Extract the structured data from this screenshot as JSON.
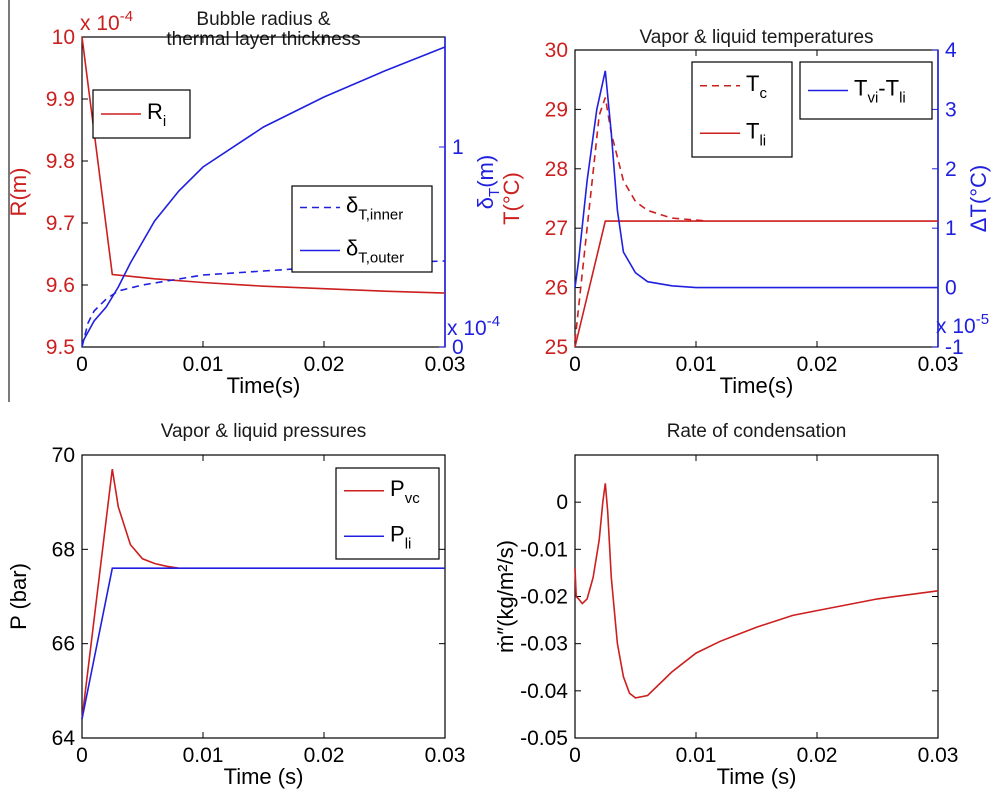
{
  "colors": {
    "red": "#cc1f1f",
    "blue": "#2020e0",
    "axis": "#000000"
  },
  "chart_data": [
    {
      "id": "p1",
      "type": "line",
      "title": [
        "Bubble radius &",
        "thermal layer thickness"
      ],
      "xlabel": "Time(s)",
      "xlim": [
        0,
        0.03
      ],
      "xticks": [
        "0",
        "0.01",
        "0.02",
        "0.03"
      ],
      "ylabel_left": {
        "main": "R",
        "unit": "(m)"
      },
      "ylim_left": [
        9.5,
        10
      ],
      "yticks_left": [
        "9.5",
        "9.6",
        "9.7",
        "9.8",
        "9.9",
        "10"
      ],
      "left_multiplier": {
        "base": "x 10",
        "exp": "-4"
      },
      "ylabel_right": {
        "main": "δ",
        "sub": "T",
        "unit": "(m)"
      },
      "ylim_right": [
        0,
        1.55
      ],
      "yticks_right": [
        "0",
        "1"
      ],
      "right_multiplier": {
        "base": "x 10",
        "exp": "-4"
      },
      "legends": [
        {
          "position": "top-left",
          "entries": [
            {
              "main": "R",
              "sub": "i",
              "style": "solid",
              "color": "red"
            }
          ]
        },
        {
          "position": "middle-right",
          "entries": [
            {
              "main": "δ",
              "sub": "T,inner",
              "style": "dashed",
              "color": "blue"
            },
            {
              "main": "δ",
              "sub": "T,outer",
              "style": "solid",
              "color": "blue"
            }
          ]
        }
      ],
      "series": [
        {
          "name": "R_i",
          "axis": "left",
          "color": "red",
          "style": "solid",
          "x": [
            0,
            0.0025,
            0.004,
            0.006,
            0.01,
            0.015,
            0.02,
            0.025,
            0.03
          ],
          "y": [
            10.0,
            9.617,
            9.614,
            9.61,
            9.604,
            9.598,
            9.594,
            9.59,
            9.587
          ]
        },
        {
          "name": "δ_T,inner",
          "axis": "right",
          "color": "blue",
          "style": "dashed",
          "x": [
            0,
            0.0005,
            0.001,
            0.002,
            0.003,
            0.005,
            0.008,
            0.01,
            0.015,
            0.02,
            0.025,
            0.03
          ],
          "y": [
            0.0,
            0.12,
            0.18,
            0.24,
            0.28,
            0.31,
            0.34,
            0.36,
            0.38,
            0.4,
            0.42,
            0.43
          ]
        },
        {
          "name": "δ_T,outer",
          "axis": "right",
          "color": "blue",
          "style": "solid",
          "x": [
            0,
            0.001,
            0.002,
            0.003,
            0.004,
            0.006,
            0.008,
            0.01,
            0.015,
            0.02,
            0.025,
            0.03
          ],
          "y": [
            0.02,
            0.13,
            0.2,
            0.3,
            0.42,
            0.63,
            0.78,
            0.9,
            1.1,
            1.25,
            1.38,
            1.5
          ]
        }
      ]
    },
    {
      "id": "p2",
      "type": "line",
      "title": [
        "Vapor & liquid temperatures"
      ],
      "xlabel": "Time(s)",
      "xlim": [
        0,
        0.03
      ],
      "xticks": [
        "0",
        "0.01",
        "0.02",
        "0.03"
      ],
      "ylabel_left": {
        "main": "T",
        "unit": "(°C)"
      },
      "ylim_left": [
        25,
        30
      ],
      "yticks_left": [
        "25",
        "26",
        "27",
        "28",
        "29",
        "30"
      ],
      "ylabel_right": {
        "main": "ΔT",
        "unit": "(°C)"
      },
      "ylim_right": [
        -1,
        4
      ],
      "yticks_right": [
        "-1",
        "0",
        "1",
        "2",
        "3",
        "4"
      ],
      "right_multiplier": {
        "base": "x 10",
        "exp": "-5"
      },
      "legends": [
        {
          "position": "top-middle",
          "entries": [
            {
              "main": "T",
              "sub": "c",
              "style": "dashed",
              "color": "red"
            },
            {
              "main": "T",
              "sub": "li",
              "style": "solid",
              "color": "red"
            }
          ]
        },
        {
          "position": "top-right",
          "entries": [
            {
              "main": "T",
              "sub": "vi",
              "mid": "-T",
              "sub2": "li",
              "style": "solid",
              "color": "blue"
            }
          ]
        }
      ],
      "series": [
        {
          "name": "T_c",
          "axis": "left",
          "color": "red",
          "style": "dashed",
          "x": [
            0,
            0.001,
            0.002,
            0.0025,
            0.003,
            0.004,
            0.005,
            0.006,
            0.008,
            0.011
          ],
          "y": [
            25.1,
            27.0,
            28.9,
            29.2,
            28.6,
            27.8,
            27.45,
            27.3,
            27.17,
            27.12
          ]
        },
        {
          "name": "T_li",
          "axis": "left",
          "color": "red",
          "style": "solid",
          "x": [
            0,
            0.0025,
            0.03
          ],
          "y": [
            25.0,
            27.12,
            27.12
          ]
        },
        {
          "name": "T_vi-T_li",
          "axis": "right",
          "color": "blue",
          "style": "solid",
          "x": [
            0,
            0.0003,
            0.001,
            0.0018,
            0.0025,
            0.003,
            0.0035,
            0.004,
            0.005,
            0.006,
            0.008,
            0.01,
            0.015,
            0.03
          ],
          "y": [
            0.0,
            0.45,
            1.8,
            3.0,
            3.65,
            2.6,
            1.3,
            0.6,
            0.25,
            0.1,
            0.03,
            0.0,
            0.0,
            0.0
          ]
        }
      ]
    },
    {
      "id": "p3",
      "type": "line",
      "title": [
        "Vapor & liquid pressures"
      ],
      "xlabel": "Time (s)",
      "xlim": [
        0,
        0.03
      ],
      "xticks": [
        "0",
        "0.01",
        "0.02",
        "0.03"
      ],
      "ylabel_left": {
        "main": "P (bar)"
      },
      "ylim_left": [
        64,
        70
      ],
      "yticks_left": [
        "64",
        "66",
        "68",
        "70"
      ],
      "legends": [
        {
          "position": "top-right",
          "entries": [
            {
              "main": "P",
              "sub": "vc",
              "style": "solid",
              "color": "red"
            },
            {
              "main": "P",
              "sub": "li",
              "style": "solid",
              "color": "blue"
            }
          ]
        }
      ],
      "series": [
        {
          "name": "P_vc",
          "axis": "left",
          "color": "red",
          "style": "solid",
          "x": [
            0,
            0.0025,
            0.003,
            0.004,
            0.005,
            0.006,
            0.007,
            0.008
          ],
          "y": [
            64.4,
            69.7,
            68.9,
            68.1,
            67.8,
            67.7,
            67.64,
            67.6
          ]
        },
        {
          "name": "P_li",
          "axis": "left",
          "color": "blue",
          "style": "solid",
          "x": [
            0,
            0.0025,
            0.03
          ],
          "y": [
            64.4,
            67.6,
            67.6
          ]
        }
      ]
    },
    {
      "id": "p4",
      "type": "line",
      "title": [
        "Rate of condensation"
      ],
      "xlabel": "Time (s)",
      "xlim": [
        0,
        0.03
      ],
      "xticks": [
        "0",
        "0.01",
        "0.02",
        "0.03"
      ],
      "ylabel_left": {
        "main": "ṁ″(kg/m²/s)"
      },
      "ylim_left": [
        -0.05,
        0.01
      ],
      "yticks_left": [
        "-0.05",
        "-0.04",
        "-0.03",
        "-0.02",
        "-0.01",
        "0"
      ],
      "legends": [],
      "series": [
        {
          "name": "m''",
          "axis": "left",
          "color": "red",
          "style": "solid",
          "x": [
            0,
            0.0001,
            0.0003,
            0.0006,
            0.001,
            0.0015,
            0.002,
            0.0023,
            0.0025,
            0.0027,
            0.003,
            0.0035,
            0.004,
            0.0045,
            0.005,
            0.006,
            0.008,
            0.01,
            0.012,
            0.015,
            0.018,
            0.02,
            0.025,
            0.03
          ],
          "y": [
            -0.014,
            -0.02,
            -0.0205,
            -0.0215,
            -0.0205,
            -0.016,
            -0.008,
            0.0,
            0.004,
            -0.002,
            -0.016,
            -0.03,
            -0.037,
            -0.0405,
            -0.0415,
            -0.041,
            -0.036,
            -0.032,
            -0.0295,
            -0.0265,
            -0.024,
            -0.023,
            -0.0205,
            -0.0188
          ]
        }
      ]
    }
  ]
}
